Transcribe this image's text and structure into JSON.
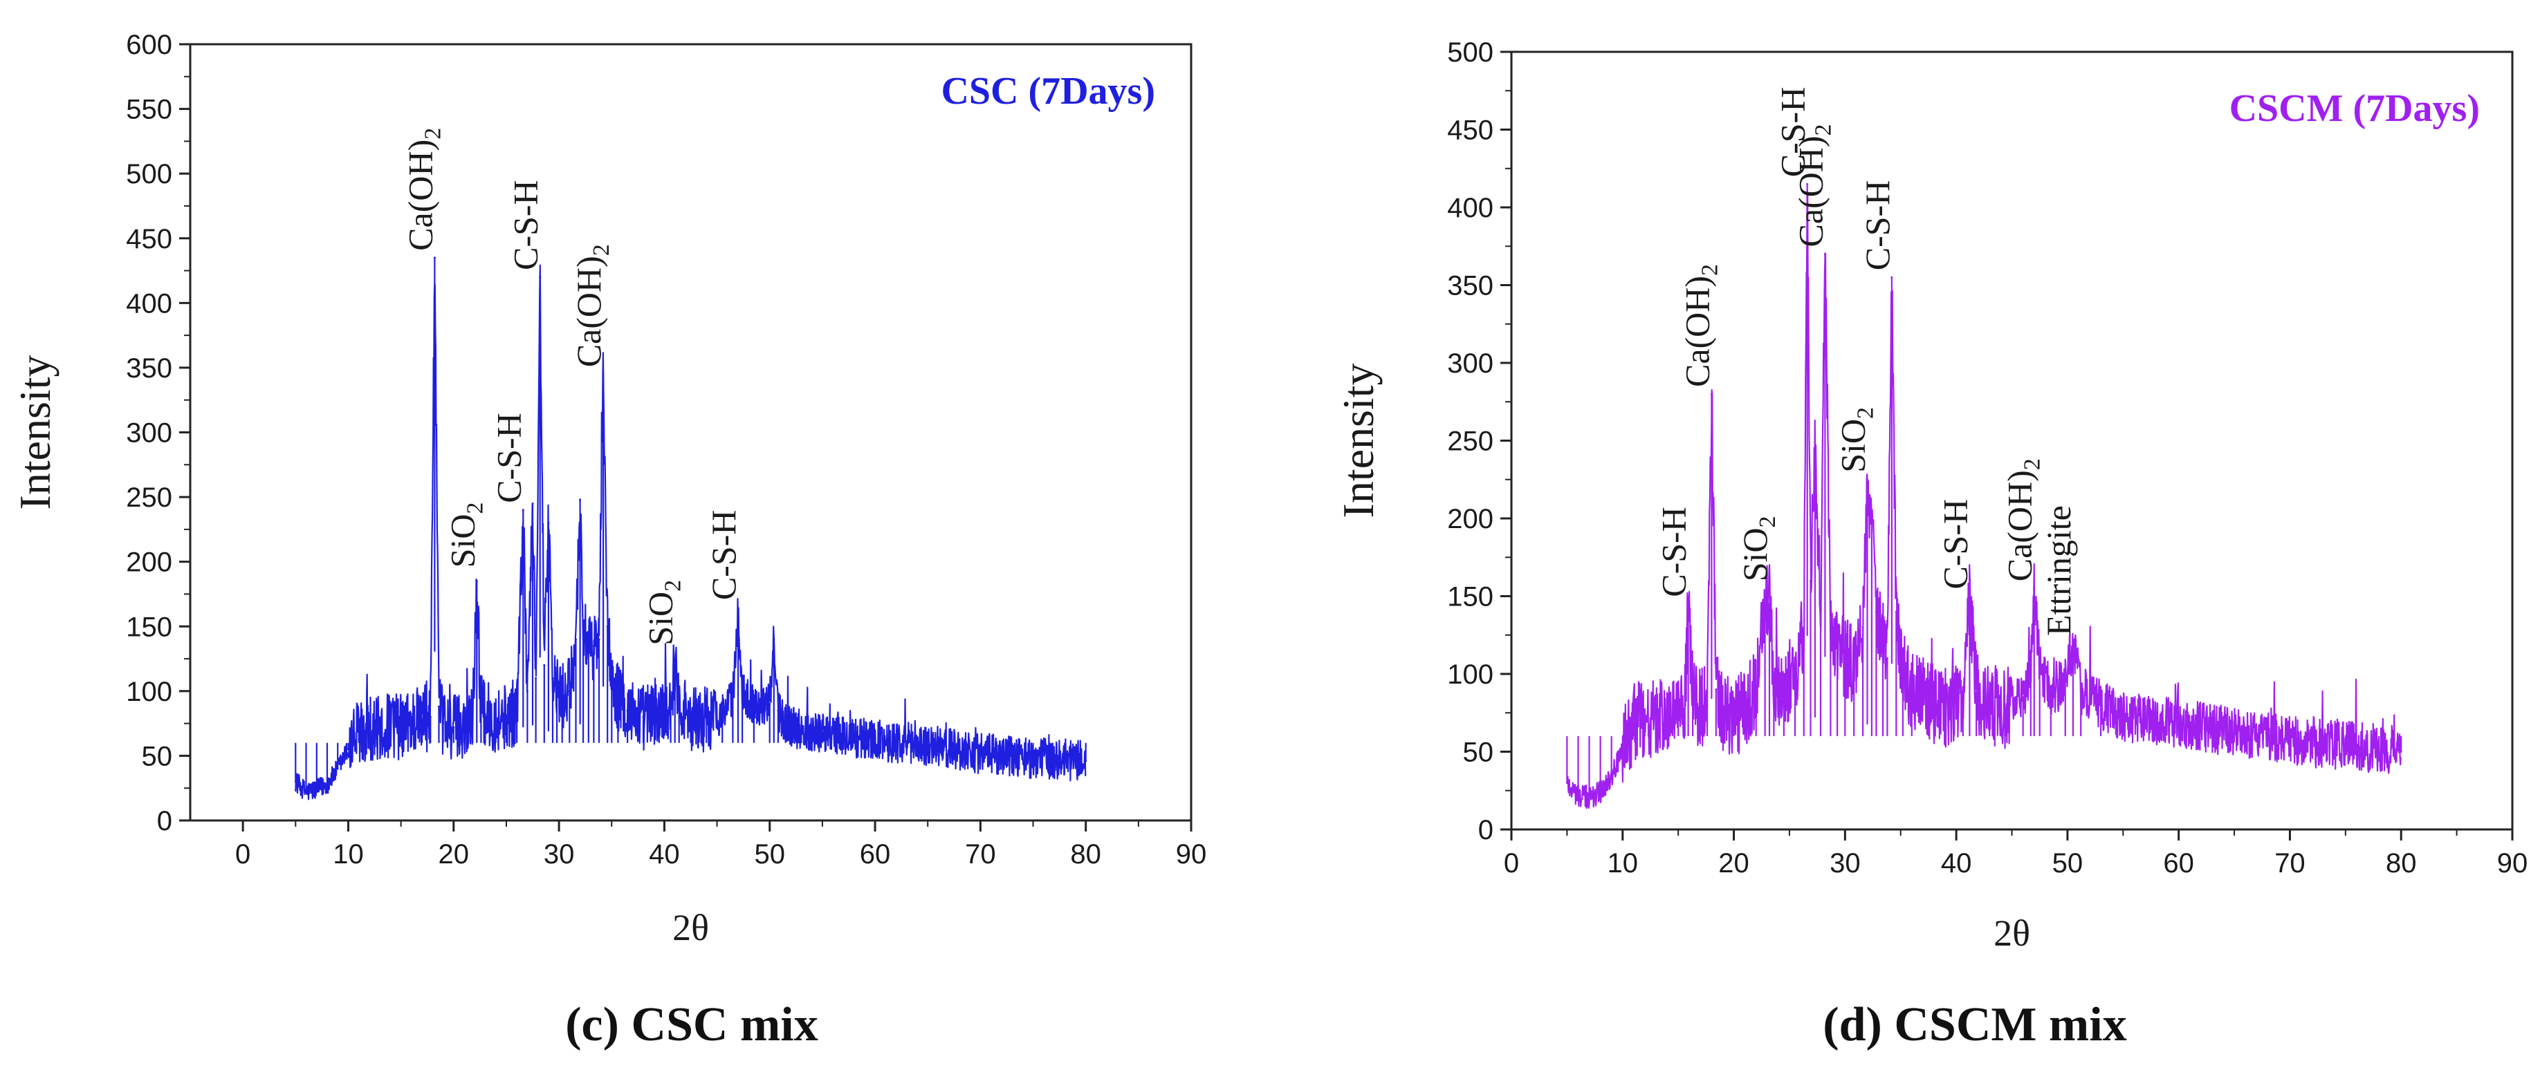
{
  "chart_data": [
    {
      "type": "line",
      "title": "CSC (7Days)",
      "caption": "(c)   CSC mix",
      "xlabel": "2θ",
      "ylabel": "Intensity",
      "xlim": [
        -5,
        90
      ],
      "ylim": [
        0,
        600
      ],
      "xticks": [
        0,
        10,
        20,
        30,
        40,
        50,
        60,
        70,
        80,
        90
      ],
      "yticks": [
        0,
        50,
        100,
        150,
        200,
        250,
        300,
        350,
        400,
        450,
        500,
        550,
        600
      ],
      "color": "#1f1fe0",
      "series": [
        {
          "name": "CSC (7Days)",
          "x": [
            5,
            6,
            7,
            8,
            9,
            10,
            11,
            12,
            13,
            14,
            15,
            16,
            17,
            17.8,
            18.2,
            18.6,
            19,
            20,
            21,
            21.8,
            22.2,
            22.6,
            23,
            24,
            25,
            26,
            26.6,
            27,
            27.5,
            27.8,
            28.2,
            28.6,
            29,
            29.4,
            29.8,
            30.3,
            31,
            31.6,
            32,
            32.3,
            32.8,
            33.3,
            33.8,
            34.2,
            34.6,
            35,
            35.6,
            36.5,
            38,
            39.5,
            40.6,
            41,
            41.4,
            42.5,
            44,
            45.5,
            46.5,
            47,
            47.4,
            48.5,
            50,
            50.4,
            50.8,
            51.5,
            53,
            55,
            57,
            60,
            63,
            65,
            68,
            70,
            73,
            75,
            78,
            80
          ],
          "values": [
            30,
            22,
            24,
            28,
            40,
            55,
            70,
            72,
            70,
            74,
            72,
            76,
            78,
            80,
            435,
            88,
            75,
            72,
            74,
            80,
            185,
            85,
            82,
            78,
            80,
            84,
            240,
            100,
            245,
            110,
            420,
            120,
            230,
            110,
            100,
            95,
            100,
            140,
            248,
            150,
            130,
            135,
            140,
            345,
            150,
            110,
            95,
            85,
            80,
            82,
            90,
            120,
            92,
            80,
            78,
            82,
            95,
            160,
            100,
            88,
            90,
            140,
            85,
            75,
            70,
            68,
            65,
            62,
            60,
            58,
            55,
            52,
            50,
            48,
            47,
            46
          ]
        }
      ],
      "annotations": [
        {
          "text": "Ca(OH)",
          "sub": "2",
          "x": 18.2,
          "y": 435
        },
        {
          "text": "SiO",
          "sub": "2",
          "x": 22.2,
          "y": 190
        },
        {
          "text": "C-S-H",
          "x": 26.6,
          "y": 240
        },
        {
          "text": "C-S-H",
          "x": 28.2,
          "y": 420
        },
        {
          "text": "Ca(OH)",
          "sub": "2",
          "x": 34.2,
          "y": 345
        },
        {
          "text": "SiO",
          "sub": "2",
          "x": 41,
          "y": 130
        },
        {
          "text": "C-S-H",
          "x": 47,
          "y": 165
        }
      ]
    },
    {
      "type": "line",
      "title": "CSCM (7Days)",
      "caption": "(d)  CSCM mix",
      "xlabel": "2θ",
      "ylabel": "Intensity",
      "xlim": [
        0,
        90
      ],
      "ylim": [
        0,
        500
      ],
      "xticks": [
        0,
        10,
        20,
        30,
        40,
        50,
        60,
        70,
        80,
        90
      ],
      "yticks": [
        0,
        50,
        100,
        150,
        200,
        250,
        300,
        350,
        400,
        450,
        500
      ],
      "color": "#a020f0",
      "series": [
        {
          "name": "CSCM (7Days)",
          "x": [
            5,
            6,
            7,
            8,
            9,
            10,
            11,
            12,
            13,
            14,
            15,
            15.6,
            15.9,
            16.3,
            17,
            17.6,
            18,
            18.4,
            19,
            20,
            21,
            22,
            22.8,
            23.2,
            23.6,
            24.5,
            25.5,
            26.3,
            26.6,
            26.9,
            27.3,
            27.8,
            28.2,
            28.7,
            29.3,
            30,
            30.8,
            31.6,
            32,
            32.4,
            32.8,
            33.4,
            33.8,
            34.2,
            34.6,
            35.2,
            36,
            37.5,
            39,
            40.6,
            41.2,
            41.8,
            43,
            44.5,
            46,
            46.7,
            47,
            47.5,
            48.5,
            49.8,
            50.5,
            51.2,
            53,
            55,
            58,
            60,
            63,
            65,
            68,
            70,
            73,
            75,
            78,
            80
          ],
          "values": [
            30,
            22,
            20,
            24,
            35,
            50,
            68,
            72,
            70,
            72,
            75,
            80,
            145,
            82,
            78,
            80,
            280,
            90,
            75,
            72,
            78,
            90,
            150,
            145,
            95,
            88,
            100,
            130,
            415,
            160,
            240,
            140,
            370,
            130,
            120,
            110,
            105,
            130,
            225,
            200,
            140,
            120,
            110,
            355,
            140,
            100,
            90,
            82,
            78,
            85,
            150,
            88,
            80,
            78,
            85,
            100,
            155,
            105,
            88,
            95,
            120,
            90,
            80,
            72,
            70,
            68,
            65,
            62,
            60,
            58,
            55,
            54,
            52,
            50
          ]
        }
      ],
      "annotations": [
        {
          "text": "C-S-H",
          "x": 15.9,
          "y": 145
        },
        {
          "text": "Ca(OH)",
          "sub": "2",
          "x": 18,
          "y": 280
        },
        {
          "text": "SiO",
          "sub": "2",
          "x": 23.2,
          "y": 155
        },
        {
          "text": "C-S-H",
          "x": 26.6,
          "y": 415
        },
        {
          "text": "Ca(OH)",
          "sub": "2",
          "x": 28.2,
          "y": 370
        },
        {
          "text": "SiO",
          "sub": "2",
          "x": 32,
          "y": 225
        },
        {
          "text": "C-S-H",
          "x": 34.2,
          "y": 355
        },
        {
          "text": "C-S-H",
          "x": 41.2,
          "y": 150
        },
        {
          "text": "Ca(OH)",
          "sub": "2",
          "x": 47,
          "y": 155
        },
        {
          "text": "Ettringite",
          "x": 50.5,
          "y": 120
        }
      ]
    }
  ]
}
